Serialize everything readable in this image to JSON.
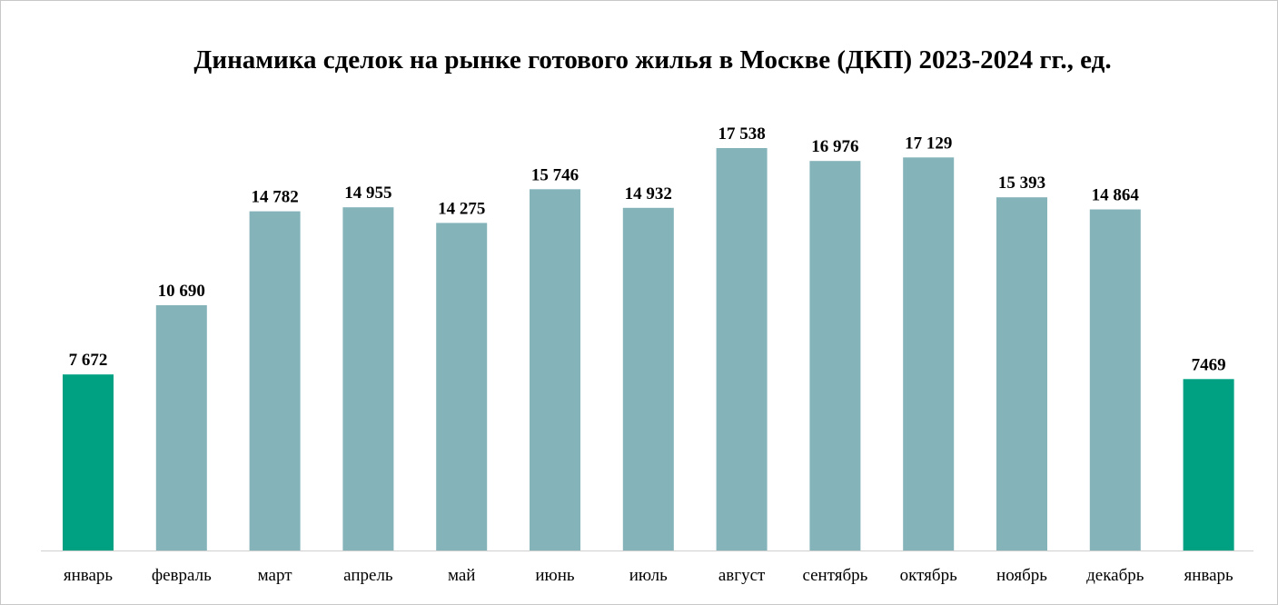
{
  "chart_data": {
    "type": "bar",
    "title": "Динамика сделок на рынке готового жилья в Москве (ДКП) 2023-2024 гг., ед.",
    "categories": [
      "январь",
      "февраль",
      "март",
      "апрель",
      "май",
      "июнь",
      "июль",
      "август",
      "сентябрь",
      "октябрь",
      "ноябрь",
      "декабрь",
      "январь"
    ],
    "values": [
      7672,
      10690,
      14782,
      14955,
      14275,
      15746,
      14932,
      17538,
      16976,
      17129,
      15393,
      14864,
      7469
    ],
    "value_labels": [
      "7 672",
      "10 690",
      "14 782",
      "14 955",
      "14 275",
      "15 746",
      "14 932",
      "17 538",
      "16 976",
      "17 129",
      "15 393",
      "14 864",
      "7469"
    ],
    "highlight_indices": [
      0,
      12
    ],
    "colors": {
      "default": "#84b4ba",
      "highlight": "#00a183",
      "axis": "#d0d0d0"
    },
    "ylim": [
      0,
      17538
    ],
    "grid": false,
    "legend": "none"
  }
}
